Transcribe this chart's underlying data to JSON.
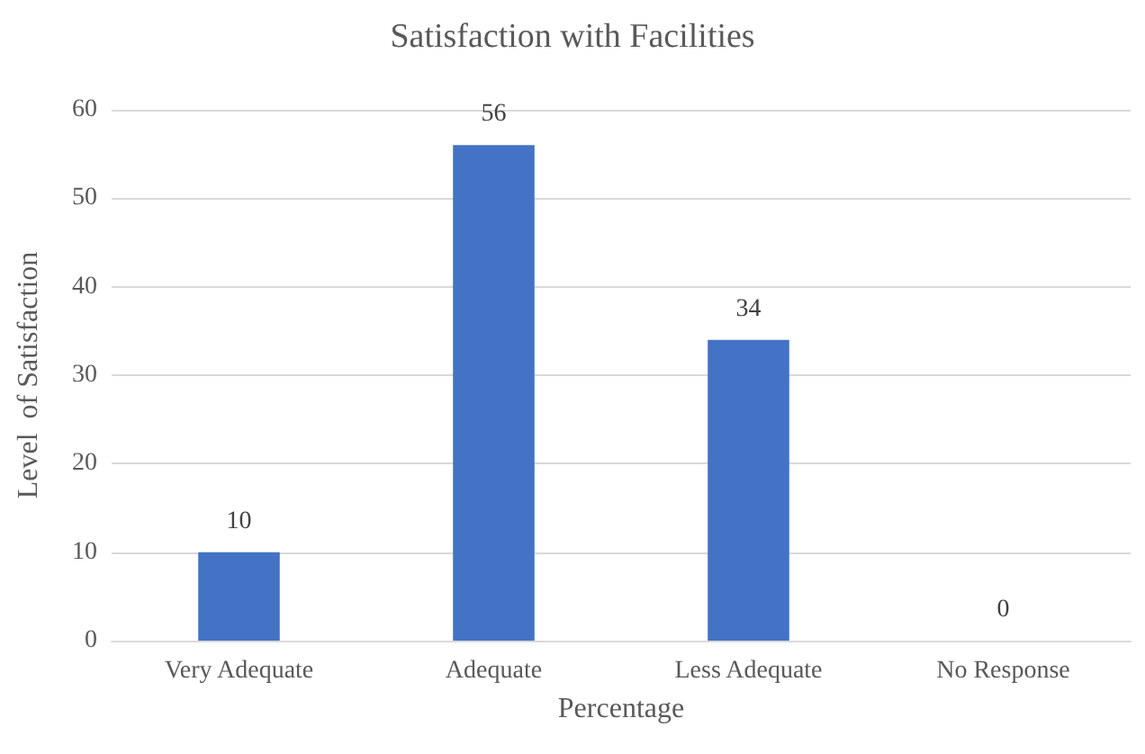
{
  "chart_data": {
    "type": "bar",
    "title": "Satisfaction with Facilities",
    "xlabel": "Percentage",
    "ylabel": "Level  of Satisfaction",
    "categories": [
      "Very Adequate",
      "Adequate",
      "Less Adequate",
      "No Response"
    ],
    "values": [
      10,
      56,
      34,
      0
    ],
    "color": "#4472c4",
    "ylim": [
      0,
      60
    ],
    "yticks": [
      0,
      10,
      20,
      30,
      40,
      50,
      60
    ],
    "grid": "y",
    "data_labels": true
  }
}
